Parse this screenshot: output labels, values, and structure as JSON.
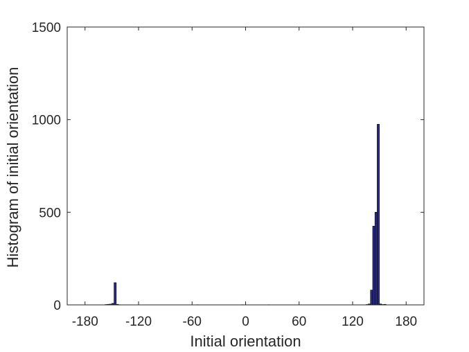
{
  "chart_data": {
    "type": "bar",
    "title": "",
    "xlabel": "Initial orientation",
    "ylabel": "Histogram of initial orientation",
    "xlim": [
      -200,
      200
    ],
    "ylim": [
      0,
      1500
    ],
    "xticks": [
      -180,
      -120,
      -60,
      0,
      60,
      120,
      180
    ],
    "yticks": [
      0,
      500,
      1000,
      1500
    ],
    "bin_width": 2.5,
    "bar_color": "#2b2a83",
    "edge_color": "#000000",
    "grid": false,
    "bins": [
      {
        "x": -156.25,
        "value": 2
      },
      {
        "x": -153.75,
        "value": 3
      },
      {
        "x": -151.25,
        "value": 4
      },
      {
        "x": -148.75,
        "value": 8
      },
      {
        "x": -146.25,
        "value": 120
      },
      {
        "x": -143.75,
        "value": 3
      },
      {
        "x": -141.25,
        "value": 1
      },
      {
        "x": -53.75,
        "value": 1
      },
      {
        "x": -3.75,
        "value": 1
      },
      {
        "x": 26.25,
        "value": 1
      },
      {
        "x": 136.25,
        "value": 2
      },
      {
        "x": 138.75,
        "value": 5
      },
      {
        "x": 141.25,
        "value": 80
      },
      {
        "x": 143.75,
        "value": 425
      },
      {
        "x": 146.25,
        "value": 500
      },
      {
        "x": 148.75,
        "value": 975
      },
      {
        "x": 151.25,
        "value": 5
      },
      {
        "x": 153.75,
        "value": 2
      },
      {
        "x": 156.25,
        "value": 3
      }
    ]
  }
}
